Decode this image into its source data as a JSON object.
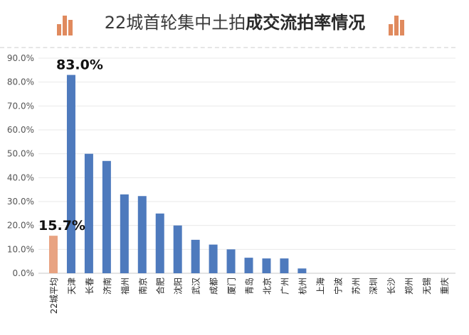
{
  "header": {
    "title_regular": "22城首轮集中土拍",
    "title_bold": "成交流拍率情况",
    "icon": "bar-chart-icon",
    "icon_color": "#e08a5e"
  },
  "chart_data": {
    "type": "bar",
    "title": "22城首轮集中土拍成交流拍率情况",
    "xlabel": "",
    "ylabel": "",
    "ylim": [
      0,
      90
    ],
    "y_ticks": [
      "0.0%",
      "10.0%",
      "20.0%",
      "30.0%",
      "40.0%",
      "50.0%",
      "60.0%",
      "70.0%",
      "80.0%",
      "90.0%"
    ],
    "grid": true,
    "categories": [
      "22城平均",
      "天津",
      "长春",
      "济南",
      "福州",
      "南京",
      "合肥",
      "沈阳",
      "武汉",
      "成都",
      "厦门",
      "青岛",
      "北京",
      "广州",
      "杭州",
      "上海",
      "宁波",
      "苏州",
      "深圳",
      "长沙",
      "郑州",
      "无锡",
      "重庆"
    ],
    "values": [
      15.7,
      83.0,
      50.0,
      47.0,
      33.0,
      32.3,
      25.0,
      20.0,
      14.0,
      12.0,
      10.0,
      6.5,
      6.2,
      6.2,
      2.0,
      0,
      0,
      0,
      0,
      0,
      0,
      0,
      0
    ],
    "highlight_index": 0,
    "bar_color": "#4e7abd",
    "highlight_color": "#e8a382",
    "data_labels": [
      {
        "index": 0,
        "text": "15.7%"
      },
      {
        "index": 1,
        "text": "83.0%"
      }
    ]
  }
}
